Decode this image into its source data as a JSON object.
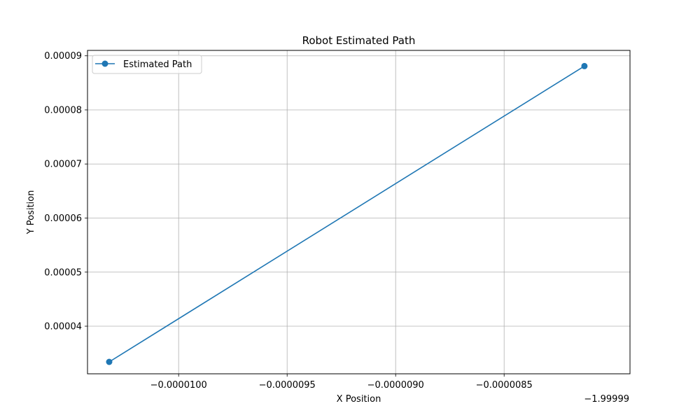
{
  "chart_data": {
    "type": "line",
    "title": "Robot Estimated Path",
    "xlabel": "X Position",
    "ylabel": "Y Position",
    "x_offset_label": "−1.99999",
    "x_offset": -1.99999,
    "xlim": [
      -1.042e-05,
      -7.92e-06
    ],
    "ylim": [
      3.12e-05,
      9.1e-05
    ],
    "x_ticks": [
      -1e-05,
      -9.5e-06,
      -9e-06,
      -8.5e-06
    ],
    "x_tick_labels": [
      "−0.0000100",
      "−0.0000095",
      "−0.0000090",
      "−0.0000085"
    ],
    "y_ticks": [
      4e-05,
      5e-05,
      6e-05,
      7e-05,
      8e-05,
      9e-05
    ],
    "y_tick_labels": [
      "0.00004",
      "0.00005",
      "0.00006",
      "0.00007",
      "0.00008",
      "0.00009"
    ],
    "grid": true,
    "legend_position": "top-left",
    "series": [
      {
        "name": "Estimated Path",
        "color": "#1f77b4",
        "marker": "circle",
        "x": [
          -1.032e-05,
          -8.13e-06
        ],
        "y": [
          3.34e-05,
          8.81e-05
        ]
      }
    ]
  }
}
